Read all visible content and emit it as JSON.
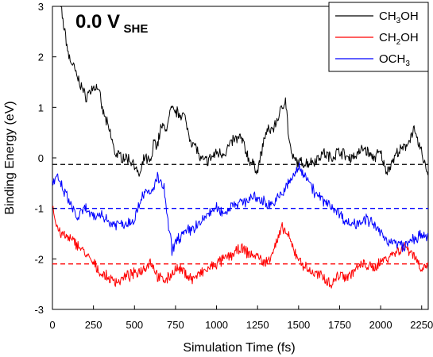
{
  "chart_data": {
    "type": "line",
    "annotation": {
      "main": "0.0 V",
      "subscript": "SHE"
    },
    "xlabel": "Simulation Time (fs)",
    "ylabel": "Binding Energy (eV)",
    "xlim": [
      0,
      2290
    ],
    "ylim": [
      -3,
      3
    ],
    "xticks": [
      0,
      250,
      500,
      750,
      1000,
      1250,
      1500,
      1750,
      2000,
      2250
    ],
    "yticks": [
      -3,
      -2,
      -1,
      0,
      1,
      2,
      3
    ],
    "legend_position": "top-right",
    "grid": false,
    "series": [
      {
        "name": "CH3OH",
        "legend_parts": [
          [
            "CH",
            ""
          ],
          [
            "3",
            "sub"
          ],
          [
            "OH",
            ""
          ]
        ],
        "color": "#000000",
        "reference_level": -0.13,
        "points": [
          [
            0,
            4.2
          ],
          [
            50,
            3.0
          ],
          [
            80,
            2.4
          ],
          [
            100,
            2.0
          ],
          [
            130,
            1.8
          ],
          [
            150,
            1.6
          ],
          [
            180,
            1.4
          ],
          [
            200,
            1.2
          ],
          [
            250,
            1.4
          ],
          [
            280,
            1.4
          ],
          [
            300,
            1.0
          ],
          [
            330,
            0.7
          ],
          [
            360,
            0.4
          ],
          [
            380,
            0.1
          ],
          [
            400,
            0.05
          ],
          [
            450,
            0.0
          ],
          [
            500,
            -0.1
          ],
          [
            520,
            -0.35
          ],
          [
            540,
            -0.3
          ],
          [
            560,
            0.0
          ],
          [
            600,
            -0.1
          ],
          [
            620,
            0.35
          ],
          [
            640,
            0.25
          ],
          [
            660,
            0.6
          ],
          [
            700,
            0.6
          ],
          [
            720,
            0.95
          ],
          [
            760,
            0.9
          ],
          [
            800,
            0.85
          ],
          [
            830,
            0.5
          ],
          [
            850,
            0.3
          ],
          [
            880,
            0.2
          ],
          [
            900,
            -0.05
          ],
          [
            950,
            -0.05
          ],
          [
            1000,
            0.1
          ],
          [
            1050,
            0.1
          ],
          [
            1100,
            0.35
          ],
          [
            1150,
            0.4
          ],
          [
            1200,
            -0.05
          ],
          [
            1250,
            -0.25
          ],
          [
            1300,
            0.5
          ],
          [
            1350,
            0.6
          ],
          [
            1400,
            1.0
          ],
          [
            1420,
            1.2
          ],
          [
            1440,
            0.4
          ],
          [
            1460,
            0.0
          ],
          [
            1500,
            -0.1
          ],
          [
            1550,
            -0.1
          ],
          [
            1600,
            -0.05
          ],
          [
            1650,
            0.1
          ],
          [
            1700,
            0.0
          ],
          [
            1750,
            0.15
          ],
          [
            1800,
            0.0
          ],
          [
            1850,
            0.05
          ],
          [
            1900,
            0.2
          ],
          [
            1950,
            0.0
          ],
          [
            2000,
            0.1
          ],
          [
            2030,
            -0.25
          ],
          [
            2050,
            -0.2
          ],
          [
            2100,
            0.1
          ],
          [
            2150,
            0.2
          ],
          [
            2200,
            0.55
          ],
          [
            2250,
            0.1
          ],
          [
            2290,
            -0.35
          ]
        ]
      },
      {
        "name": "CH2OH",
        "legend_parts": [
          [
            "CH",
            ""
          ],
          [
            "2",
            "sub"
          ],
          [
            "OH",
            ""
          ]
        ],
        "color": "#ff0000",
        "reference_level": -2.1,
        "points": [
          [
            0,
            -0.9
          ],
          [
            20,
            -1.3
          ],
          [
            50,
            -1.5
          ],
          [
            100,
            -1.6
          ],
          [
            150,
            -1.7
          ],
          [
            200,
            -1.9
          ],
          [
            250,
            -2.1
          ],
          [
            300,
            -2.3
          ],
          [
            350,
            -2.4
          ],
          [
            400,
            -2.45
          ],
          [
            450,
            -2.35
          ],
          [
            500,
            -2.3
          ],
          [
            550,
            -2.2
          ],
          [
            600,
            -2.05
          ],
          [
            650,
            -2.4
          ],
          [
            700,
            -2.4
          ],
          [
            750,
            -2.2
          ],
          [
            800,
            -2.25
          ],
          [
            850,
            -2.4
          ],
          [
            900,
            -2.3
          ],
          [
            950,
            -2.2
          ],
          [
            1000,
            -2.1
          ],
          [
            1050,
            -2.0
          ],
          [
            1100,
            -1.9
          ],
          [
            1150,
            -1.8
          ],
          [
            1200,
            -1.9
          ],
          [
            1250,
            -1.95
          ],
          [
            1300,
            -2.1
          ],
          [
            1350,
            -1.8
          ],
          [
            1400,
            -1.4
          ],
          [
            1430,
            -1.5
          ],
          [
            1460,
            -1.75
          ],
          [
            1500,
            -2.0
          ],
          [
            1550,
            -2.2
          ],
          [
            1600,
            -2.3
          ],
          [
            1650,
            -2.35
          ],
          [
            1700,
            -2.5
          ],
          [
            1750,
            -2.3
          ],
          [
            1800,
            -2.35
          ],
          [
            1850,
            -2.2
          ],
          [
            1900,
            -2.1
          ],
          [
            1950,
            -2.2
          ],
          [
            2000,
            -2.05
          ],
          [
            2050,
            -1.95
          ],
          [
            2100,
            -1.85
          ],
          [
            2150,
            -1.75
          ],
          [
            2200,
            -1.9
          ],
          [
            2250,
            -2.2
          ],
          [
            2290,
            -2.1
          ]
        ]
      },
      {
        "name": "OCH3",
        "legend_parts": [
          [
            "OCH",
            ""
          ],
          [
            "3",
            "sub"
          ]
        ],
        "color": "#0000ff",
        "reference_level": -1.0,
        "points": [
          [
            0,
            -0.5
          ],
          [
            30,
            -0.4
          ],
          [
            60,
            -0.6
          ],
          [
            100,
            -0.85
          ],
          [
            150,
            -1.2
          ],
          [
            200,
            -1.0
          ],
          [
            250,
            -1.2
          ],
          [
            300,
            -1.1
          ],
          [
            350,
            -1.3
          ],
          [
            400,
            -1.3
          ],
          [
            450,
            -1.3
          ],
          [
            500,
            -1.2
          ],
          [
            550,
            -0.7
          ],
          [
            600,
            -0.7
          ],
          [
            640,
            -0.4
          ],
          [
            680,
            -0.6
          ],
          [
            700,
            -1.2
          ],
          [
            730,
            -1.85
          ],
          [
            760,
            -1.6
          ],
          [
            800,
            -1.5
          ],
          [
            850,
            -1.4
          ],
          [
            900,
            -1.3
          ],
          [
            950,
            -1.1
          ],
          [
            1000,
            -1.0
          ],
          [
            1050,
            -1.1
          ],
          [
            1100,
            -0.9
          ],
          [
            1150,
            -0.9
          ],
          [
            1200,
            -0.8
          ],
          [
            1250,
            -0.8
          ],
          [
            1300,
            -0.9
          ],
          [
            1350,
            -0.9
          ],
          [
            1400,
            -0.7
          ],
          [
            1450,
            -0.45
          ],
          [
            1500,
            -0.2
          ],
          [
            1550,
            -0.35
          ],
          [
            1600,
            -0.7
          ],
          [
            1650,
            -0.85
          ],
          [
            1700,
            -0.95
          ],
          [
            1750,
            -1.1
          ],
          [
            1800,
            -1.3
          ],
          [
            1850,
            -1.3
          ],
          [
            1900,
            -1.2
          ],
          [
            1950,
            -1.3
          ],
          [
            2000,
            -1.5
          ],
          [
            2050,
            -1.65
          ],
          [
            2100,
            -1.7
          ],
          [
            2150,
            -1.75
          ],
          [
            2200,
            -1.6
          ],
          [
            2250,
            -1.55
          ],
          [
            2290,
            -1.6
          ]
        ]
      }
    ]
  }
}
